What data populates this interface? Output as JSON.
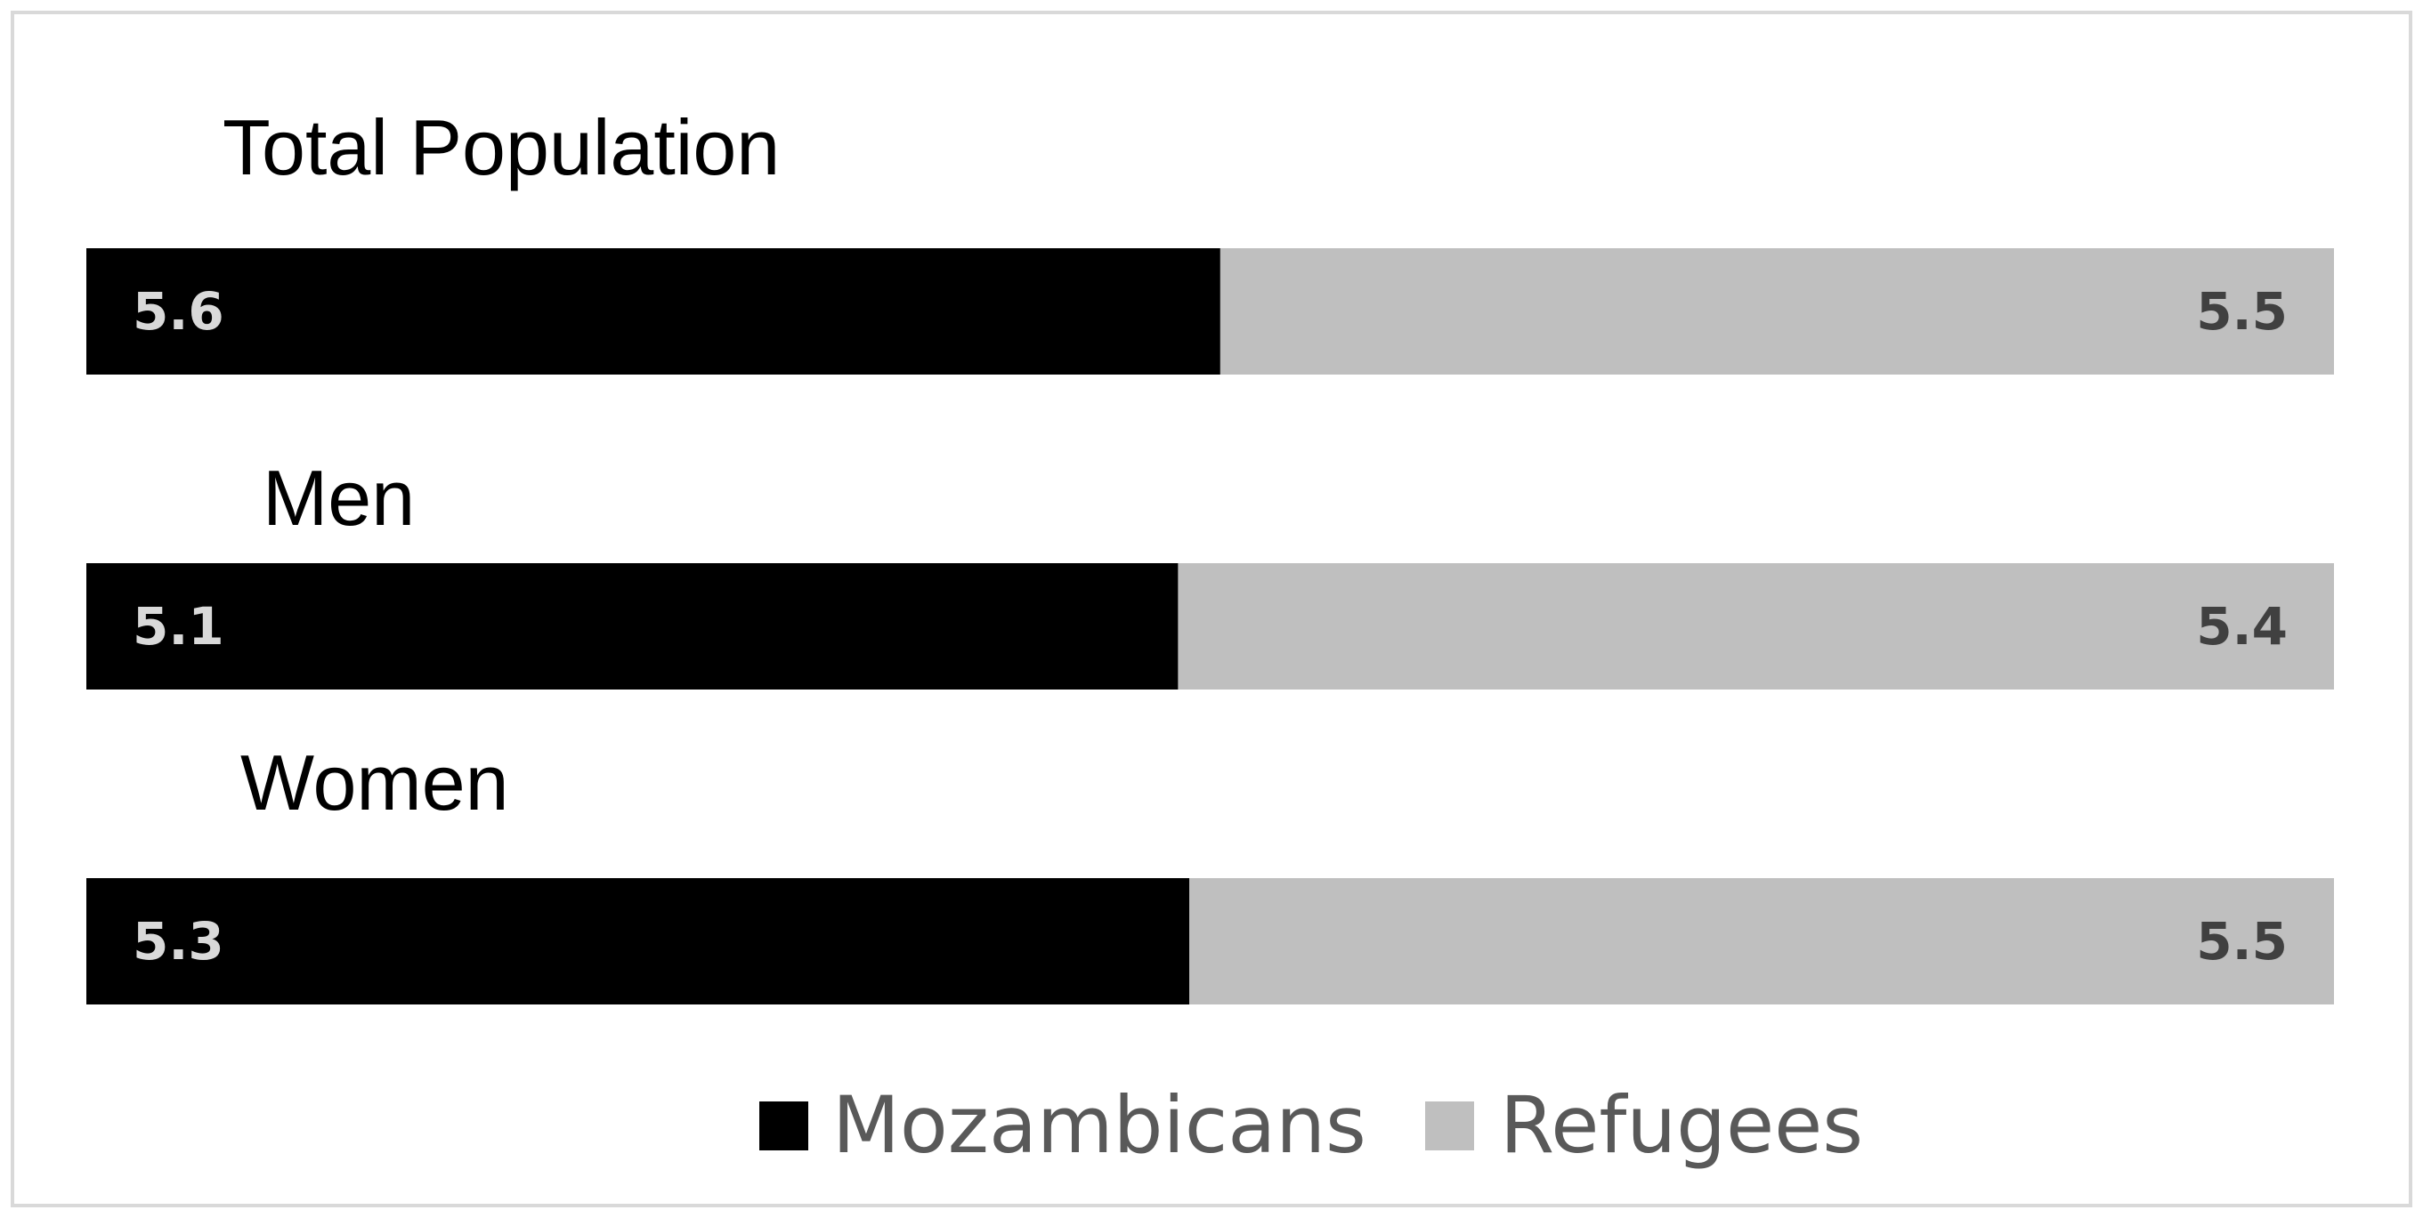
{
  "chart_data": {
    "type": "bar",
    "stacking": "normalized-100",
    "orientation": "horizontal",
    "categories": [
      "Total Population",
      "Men",
      "Women"
    ],
    "series": [
      {
        "name": "Mozambicans",
        "color": "#000000",
        "label_color": "#d9d9d9",
        "values": [
          5.6,
          5.1,
          5.3
        ]
      },
      {
        "name": "Refugees",
        "color": "#bfbfbf",
        "label_color": "#404040",
        "values": [
          5.5,
          5.4,
          5.5
        ]
      }
    ],
    "legend_position": "bottom-center",
    "grid": false,
    "frame_color": "#d9d9d9"
  }
}
